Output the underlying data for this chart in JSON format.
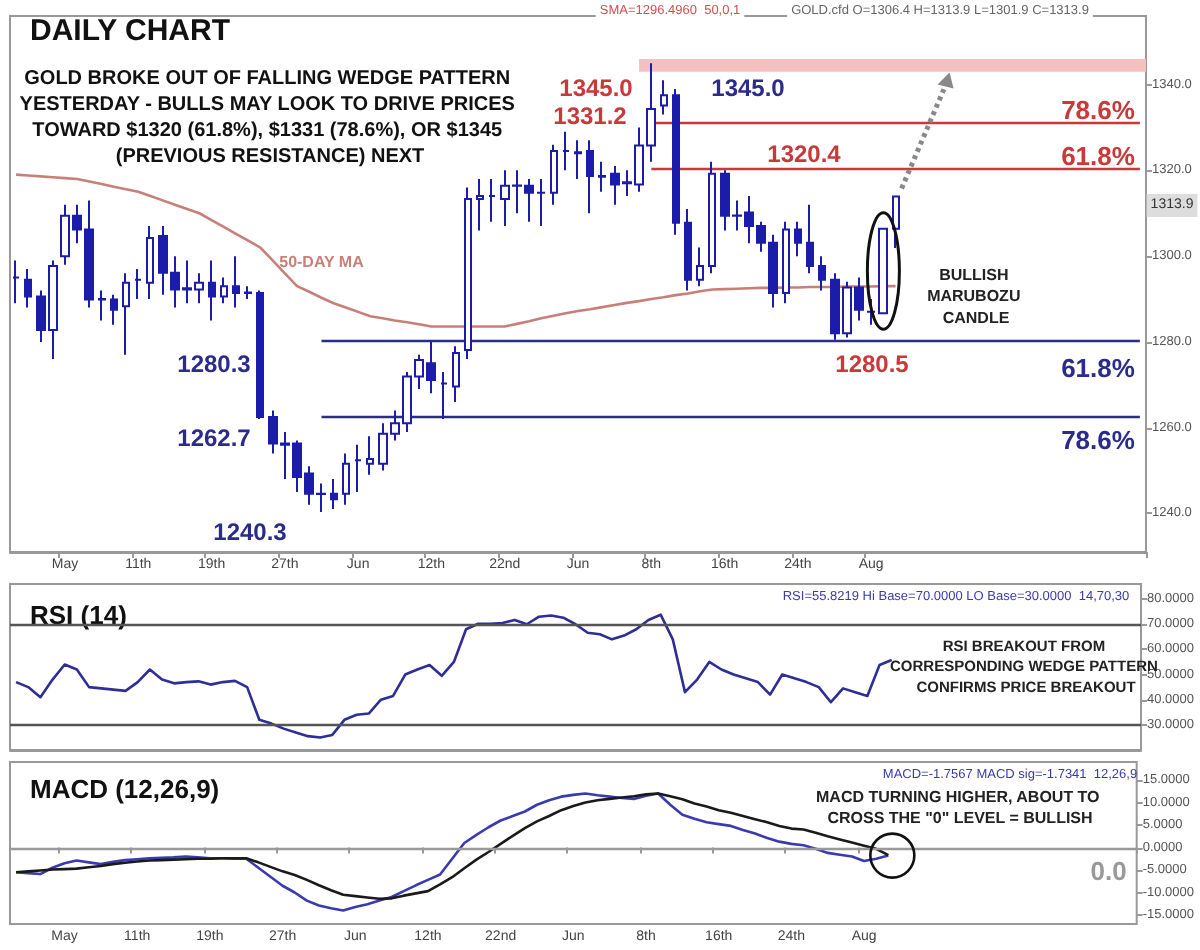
{
  "chart_data": [
    {
      "type": "candlestick",
      "title": "DAILY CHART",
      "subtitle": "GOLD BROKE OUT OF FALLING WEDGE PATTERN YESTERDAY - BULLS MAY LOOK TO DRIVE PRICES TOWARD $1320 (61.8%), $1331 (78.6%), OR $1345 (PREVIOUS RESISTANCE) NEXT",
      "categories": [
        null,
        null,
        null,
        null,
        "May",
        null,
        null,
        null,
        null,
        null,
        "11th",
        null,
        null,
        null,
        null,
        null,
        "19th",
        null,
        null,
        null,
        null,
        null,
        "27th",
        null,
        null,
        null,
        null,
        null,
        "Jun",
        null,
        null,
        null,
        null,
        null,
        "12th",
        null,
        null,
        null,
        null,
        null,
        "22nd",
        null,
        null,
        null,
        null,
        null,
        "Jun",
        null,
        null,
        null,
        null,
        null,
        "8th",
        null,
        null,
        null,
        null,
        null,
        "16th",
        null,
        null,
        null,
        null,
        null,
        "24th",
        null,
        null,
        null,
        null,
        null,
        "Aug",
        null,
        null,
        null,
        null,
        null,
        null,
        null,
        null,
        null,
        null,
        null,
        null,
        null,
        null,
        null,
        null,
        null,
        null,
        null,
        null,
        null,
        null
      ],
      "color": "#1c1caa",
      "ohlc": [
        [
          1295,
          1299,
          1289,
          1295
        ],
        [
          1294.5,
          1297,
          1288,
          1290.6
        ],
        [
          1290.6,
          1292,
          1280,
          1282.8
        ],
        [
          1282.8,
          1299,
          1276,
          1297.7
        ],
        [
          1300,
          1312,
          1298,
          1309.4
        ],
        [
          1309.4,
          1312,
          1303,
          1306.2
        ],
        [
          1306.2,
          1313,
          1288,
          1289.9
        ],
        [
          1289.9,
          1292,
          1285,
          1290
        ],
        [
          1289.9,
          1291,
          1284,
          1287.5
        ],
        [
          1288.3,
          1296,
          1277,
          1293.8
        ],
        [
          1294.5,
          1297,
          1290,
          1294.5
        ],
        [
          1293.8,
          1307,
          1290,
          1304.2
        ],
        [
          1304.7,
          1307,
          1291,
          1296.1
        ],
        [
          1296.1,
          1300,
          1288,
          1292.2
        ],
        [
          1292.2,
          1299,
          1289,
          1292.5
        ],
        [
          1292.2,
          1296,
          1289,
          1293.8
        ],
        [
          1293.8,
          1299,
          1285,
          1290.6
        ],
        [
          1290.6,
          1295,
          1289,
          1293
        ],
        [
          1293,
          1300,
          1288,
          1291.4
        ],
        [
          1291.4,
          1293,
          1290,
          1291.5
        ],
        [
          1291.4,
          1292,
          1262,
          1262.5
        ],
        [
          1262.5,
          1264,
          1254,
          1256.3
        ],
        [
          1256.3,
          1259,
          1248,
          1256
        ],
        [
          1256.3,
          1257,
          1245,
          1248.5
        ],
        [
          1249.3,
          1251,
          1242,
          1244.6
        ],
        [
          1244.6,
          1247,
          1240.3,
          1244.5
        ],
        [
          1244.6,
          1248,
          1241,
          1243.3
        ],
        [
          1244.6,
          1254,
          1242,
          1251.6
        ],
        [
          1252.4,
          1256,
          1245,
          1252.4
        ],
        [
          1251.6,
          1258,
          1249,
          1252.7
        ],
        [
          1251.6,
          1261,
          1250,
          1258.6
        ],
        [
          1258.6,
          1264,
          1257,
          1261
        ],
        [
          1261,
          1273,
          1259,
          1271.9
        ],
        [
          1271.9,
          1277,
          1269,
          1275.8
        ],
        [
          1275,
          1280,
          1268,
          1271.1
        ],
        [
          1270.3,
          1273,
          1262,
          1270.3
        ],
        [
          1269.6,
          1279,
          1266,
          1277.4
        ],
        [
          1278.1,
          1316,
          1276,
          1313.3
        ],
        [
          1313.3,
          1318,
          1306,
          1314
        ],
        [
          1314,
          1318,
          1308,
          1314
        ],
        [
          1313.3,
          1320,
          1307,
          1316.4
        ],
        [
          1316.4,
          1320,
          1310,
          1316.5
        ],
        [
          1316.4,
          1318,
          1308,
          1314.8
        ],
        [
          1314.8,
          1318,
          1307,
          1314.8
        ],
        [
          1314.8,
          1326,
          1312,
          1324.5
        ],
        [
          1324.5,
          1329,
          1320,
          1324.5
        ],
        [
          1324.2,
          1327,
          1318,
          1324
        ],
        [
          1324.5,
          1327,
          1310,
          1318.7
        ],
        [
          1318.7,
          1322,
          1315,
          1318.5
        ],
        [
          1319.2,
          1321,
          1312,
          1316.7
        ],
        [
          1317.2,
          1320,
          1314,
          1317
        ],
        [
          1316.7,
          1330,
          1315,
          1325.8
        ],
        [
          1325.8,
          1345,
          1322,
          1334.3
        ],
        [
          1335.1,
          1341,
          1333,
          1337.5
        ],
        [
          1337.5,
          1339,
          1305,
          1307.8
        ],
        [
          1307.8,
          1311,
          1292,
          1294.5
        ],
        [
          1294.5,
          1302,
          1293,
          1297.7
        ],
        [
          1297.7,
          1322,
          1296,
          1319.2
        ],
        [
          1319.2,
          1320,
          1306,
          1309.4
        ],
        [
          1309.4,
          1313,
          1306,
          1309.5
        ],
        [
          1310.2,
          1314,
          1303,
          1307
        ],
        [
          1307,
          1308,
          1301,
          1303.1
        ],
        [
          1303.1,
          1305,
          1288,
          1291.4
        ],
        [
          1291.4,
          1308,
          1289,
          1306.2
        ],
        [
          1306.2,
          1308,
          1300,
          1303.1
        ],
        [
          1303.1,
          1312,
          1296,
          1297.7
        ],
        [
          1297.7,
          1300,
          1292,
          1294.5
        ],
        [
          1294.5,
          1296,
          1280.5,
          1282
        ],
        [
          1282,
          1294,
          1281,
          1292.7
        ],
        [
          1292.7,
          1295,
          1285,
          1287.5
        ],
        [
          1287,
          1290,
          1284,
          1287
        ],
        [
          1286.7,
          1306.4,
          1286.7,
          1306.4
        ],
        [
          1306.4,
          1313.9,
          1301.9,
          1313.9
        ],
        null,
        null,
        null,
        null,
        null,
        null,
        null,
        null,
        null,
        null,
        null,
        null,
        null,
        null,
        null,
        null,
        null,
        null,
        null,
        null
      ],
      "series": [
        {
          "type": "line",
          "name": "50-DAY MA",
          "color": "#c87f78",
          "values": [
            1319,
            1318.8,
            1318.6,
            1318.4,
            1318.2,
            1318,
            1317.4,
            1316.8,
            1316.2,
            1315.6,
            1315,
            1314,
            1313,
            1312,
            1311,
            1310,
            1308.4,
            1306.8,
            1305.2,
            1303.6,
            1302,
            1299,
            1296,
            1293,
            1291.7,
            1290.3,
            1289,
            1288,
            1287,
            1286,
            1285.5,
            1285,
            1284.6,
            1284.1,
            1283.6,
            1283.6,
            1283.6,
            1283.6,
            1283.6,
            1283.6,
            1283.6,
            1284.2,
            1284.8,
            1285.5,
            1286.1,
            1286.7,
            1287.2,
            1287.6,
            1288.1,
            1288.6,
            1289.1,
            1289.5,
            1290,
            1290.4,
            1290.9,
            1291.3,
            1291.8,
            1292.2,
            1292.3,
            1292.4,
            1292.5,
            1292.6,
            1292.6,
            1292.7,
            1292.7,
            1292.8,
            1292.8,
            1292.8,
            1292.9,
            1292.9,
            1292.9,
            1293,
            1293,
            null,
            null,
            null,
            null,
            null,
            null,
            null,
            null,
            null,
            null,
            null,
            null,
            null,
            null,
            null,
            null,
            null,
            null,
            null,
            null
          ]
        }
      ],
      "ylim": [
        1231,
        1356
      ],
      "yticks": [
        {
          "value": 1240,
          "label": "1240.0"
        },
        {
          "value": 1260,
          "label": "1260.0"
        },
        {
          "value": 1280,
          "label": "1280.0"
        },
        {
          "value": 1300,
          "label": "1300.0"
        },
        {
          "value": 1320,
          "label": "1320.0"
        },
        {
          "value": 1340,
          "label": "1340.0"
        }
      ],
      "bands": [
        {
          "axis": "y",
          "from": 1343,
          "to": 1346,
          "color": "#f4c0c0"
        }
      ],
      "ref_lines": [
        {
          "axis": "y",
          "value": 1331.2,
          "color": "#c83a3a"
        },
        {
          "axis": "y",
          "value": 1320.4,
          "color": "#c83a3a"
        },
        {
          "axis": "y",
          "value": 1280.3,
          "color": "#2b2b8c"
        },
        {
          "axis": "y",
          "value": 1262.7,
          "color": "#2b2b8c"
        }
      ],
      "annotations": [
        "SMA=1296.4960  50,0,1",
        "GOLD.cfd O=1306.4 H=1313.9 L=1301.9 C=1313.9",
        "1280.3",
        "1262.7",
        "1240.3",
        "1345.0",
        "1345.0",
        "1331.2",
        "1320.4",
        "1280.5",
        "BULLISH MARUBOZU CANDLE",
        "1313.9",
        "78.6%",
        "61.8%",
        "61.8%",
        "78.6%"
      ]
    },
    {
      "type": "line",
      "title": "RSI (14)",
      "categories": [
        null,
        null,
        null,
        null,
        "May",
        null,
        null,
        null,
        null,
        null,
        "11th",
        null,
        null,
        null,
        null,
        null,
        "19th",
        null,
        null,
        null,
        null,
        null,
        "27th",
        null,
        null,
        null,
        null,
        null,
        "Jun",
        null,
        null,
        null,
        null,
        null,
        "12th",
        null,
        null,
        null,
        null,
        null,
        "22nd",
        null,
        null,
        null,
        null,
        null,
        "Jun",
        null,
        null,
        null,
        null,
        null,
        "8th",
        null,
        null,
        null,
        null,
        null,
        "16th",
        null,
        null,
        null,
        null,
        null,
        "24th",
        null,
        null,
        null,
        null,
        null,
        "Aug",
        null,
        null,
        null,
        null,
        null,
        null,
        null,
        null,
        null,
        null,
        null,
        null,
        null,
        null,
        null,
        null,
        null,
        null,
        null,
        null,
        null,
        null
      ],
      "tick_labels": "y",
      "series": [
        {
          "color": "#2e2e96",
          "values": [
            47,
            45,
            41,
            48,
            54,
            52,
            45,
            44.5,
            44,
            43.5,
            47,
            52,
            48,
            46.5,
            47,
            47.3,
            46,
            47,
            47.5,
            45,
            32,
            30.5,
            28.5,
            27,
            25.5,
            25,
            26,
            32,
            34,
            34.5,
            40,
            41.5,
            50,
            52,
            53.8,
            49.5,
            55,
            68,
            70.2,
            70.2,
            70.5,
            71.7,
            70,
            73,
            73.5,
            72.6,
            70,
            66.6,
            66,
            64,
            65.5,
            68,
            71.7,
            73.8,
            64,
            43,
            48,
            55,
            52,
            50,
            48.5,
            47,
            42,
            50,
            48.5,
            47,
            45,
            39,
            44.5,
            43,
            41.5,
            53.8,
            55.8,
            null,
            null,
            null,
            null,
            null,
            null,
            null,
            null,
            null,
            null,
            null,
            null,
            null,
            null,
            null,
            null,
            null,
            null,
            null,
            null
          ]
        }
      ],
      "ylim": [
        20,
        86
      ],
      "yticks": [
        {
          "value": 30,
          "label": "30.0000"
        },
        {
          "value": 40,
          "label": "40.0000"
        },
        {
          "value": 50,
          "label": "50.0000"
        },
        {
          "value": 60,
          "label": "60.0000"
        },
        {
          "value": 70,
          "label": "70.0000"
        },
        {
          "value": 80,
          "label": "80.0000"
        }
      ],
      "ref_lines": [
        {
          "axis": "y",
          "value": 70,
          "color": "#555555"
        },
        {
          "axis": "y",
          "value": 30,
          "color": "#555555"
        }
      ],
      "annotations": [
        "RSI=55.8219 Hi Base=70.0000 LO Base=30.0000  14,70,30",
        "RSI BREAKOUT FROM CORRESPONDING WEDGE PATTERN CONFIRMS PRICE BREAKOUT"
      ]
    },
    {
      "type": "line",
      "title": "MACD (12,26,9)",
      "categories": [
        null,
        null,
        null,
        null,
        "May",
        null,
        null,
        null,
        null,
        null,
        "11th",
        null,
        null,
        null,
        null,
        null,
        "19th",
        null,
        null,
        null,
        null,
        null,
        "27th",
        null,
        null,
        null,
        null,
        null,
        "Jun",
        null,
        null,
        null,
        null,
        null,
        "12th",
        null,
        null,
        null,
        null,
        null,
        "22nd",
        null,
        null,
        null,
        null,
        null,
        "Jun",
        null,
        null,
        null,
        null,
        null,
        "8th",
        null,
        null,
        null,
        null,
        null,
        "16th",
        null,
        null,
        null,
        null,
        null,
        "24th",
        null,
        null,
        null,
        null,
        null,
        "Aug",
        null,
        null,
        null,
        null,
        null,
        null,
        null,
        null,
        null,
        null,
        null,
        null,
        null,
        null,
        null,
        null,
        null,
        null,
        null,
        null,
        null,
        null
      ],
      "series": [
        {
          "color": "#3b3bb0",
          "values": [
            -5.5,
            -5.7,
            -5.9,
            -4.5,
            -3.5,
            -2.9,
            -3.3,
            -3.7,
            -3.2,
            -2.8,
            -2.6,
            -2.4,
            -2.3,
            -2.2,
            -2,
            -2.2,
            -2.4,
            -2.4,
            -2.5,
            -2.5,
            -4.5,
            -6.5,
            -8.5,
            -10,
            -11.8,
            -12.9,
            -13.5,
            -14,
            -13.2,
            -12.6,
            -11.8,
            -11,
            -9.7,
            -8.4,
            -7.2,
            -6,
            -2.5,
            1,
            2.8,
            4.5,
            6,
            7,
            8,
            9.5,
            10.5,
            11.3,
            11.7,
            12,
            11.6,
            11.3,
            11,
            10.8,
            11.5,
            12,
            9.5,
            7.3,
            6.4,
            5.6,
            5.2,
            4.8,
            3.9,
            3.1,
            2.1,
            1.3,
            0.8,
            0.5,
            -0.3,
            -1.2,
            -1.6,
            -2,
            -3,
            -2.5,
            -1.8,
            null,
            null,
            null,
            null,
            null,
            null,
            null,
            null,
            null,
            null,
            null,
            null,
            null,
            null,
            null,
            null,
            null,
            null,
            null,
            null
          ]
        },
        {
          "color": "#1a1a1a",
          "values": [
            -5.5,
            -5.3,
            -5.1,
            -4.9,
            -4.8,
            -4.7,
            -4.4,
            -4.1,
            -3.7,
            -3.4,
            -3.1,
            -2.9,
            -2.8,
            -2.7,
            -2.6,
            -2.5,
            -2.5,
            -2.4,
            -2.4,
            -2.4,
            -3.3,
            -4.3,
            -5.3,
            -6.1,
            -7.2,
            -8.4,
            -9.5,
            -10.5,
            -10.8,
            -11.1,
            -11.4,
            -11.3,
            -10.7,
            -10.2,
            -9.7,
            -8.2,
            -6.6,
            -4.6,
            -2.7,
            -1,
            0.8,
            2.6,
            4.3,
            5.8,
            7,
            8.3,
            9.2,
            10,
            10.5,
            10.8,
            11.1,
            11.4,
            11.8,
            12,
            11.4,
            10.7,
            9.8,
            9.1,
            8.3,
            7.7,
            7,
            6.3,
            5.6,
            4.8,
            4.2,
            4,
            3.3,
            2.5,
            1.8,
            1.1,
            0.4,
            -0.3,
            -1.7,
            null,
            null,
            null,
            null,
            null,
            null,
            null,
            null,
            null,
            null,
            null,
            null,
            null,
            null,
            null,
            null,
            null,
            null,
            null,
            null
          ]
        }
      ],
      "ylim": [
        -17,
        19
      ],
      "yticks": [
        {
          "value": -15,
          "label": "-15.0000"
        },
        {
          "value": -10,
          "label": "-10.0000"
        },
        {
          "value": -5,
          "label": "-5.0000"
        },
        {
          "value": 0,
          "label": "0.0000"
        },
        {
          "value": 5,
          "label": "5.0000"
        },
        {
          "value": 10,
          "label": "10.0000"
        },
        {
          "value": 15,
          "label": "15.0000"
        }
      ],
      "ref_lines": [
        {
          "axis": "y",
          "value": 0,
          "label": "0.0",
          "color": "#999999"
        }
      ],
      "annotations": [
        "MACD=-1.7567 MACD sig=-1.7341  12,26,9",
        "MACD TURNING HIGHER, ABOUT TO CROSS THE \"0\" LEVEL = BULLISH"
      ]
    }
  ]
}
